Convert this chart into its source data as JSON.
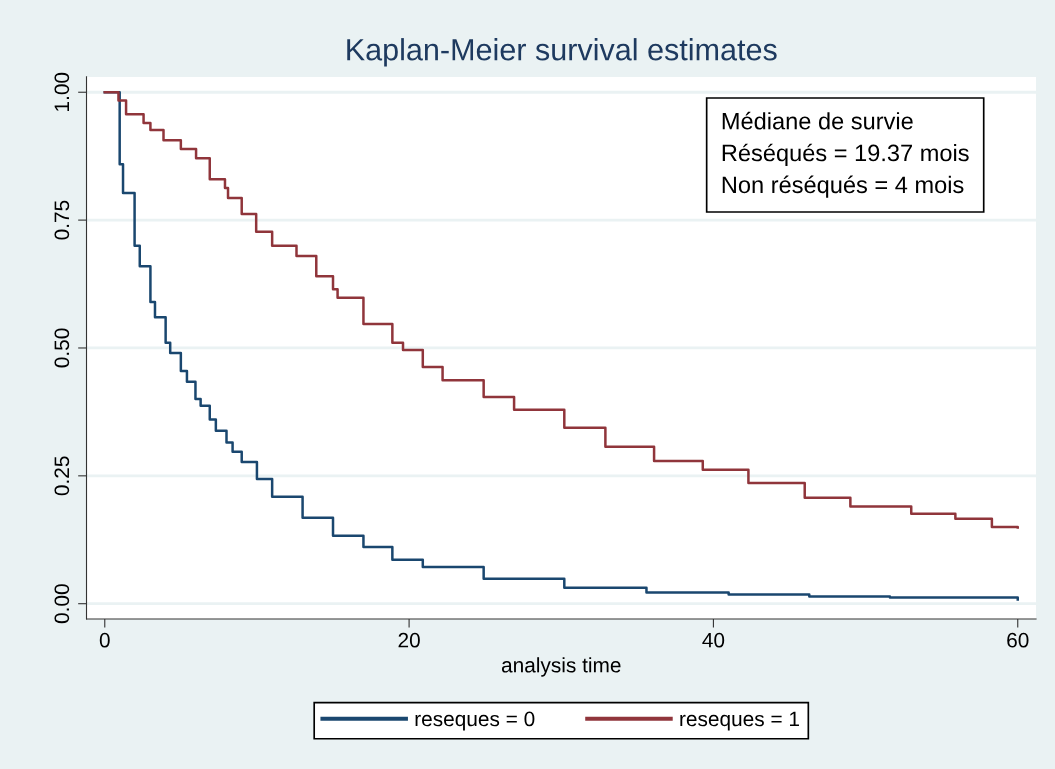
{
  "chart_data": {
    "type": "step",
    "title": "Kaplan-Meier survival estimates",
    "xlabel": "analysis time",
    "xlim": [
      -1.2,
      61.2
    ],
    "xticks": [
      0,
      20,
      40,
      60
    ],
    "ylim": [
      -0.03,
      1.03
    ],
    "yticks": [
      {
        "value": 0,
        "label": "0.00"
      },
      {
        "value": 0.25,
        "label": "0.25"
      },
      {
        "value": 0.5,
        "label": "0.50"
      },
      {
        "value": 0.75,
        "label": "0.75"
      },
      {
        "value": 1,
        "label": "1.00"
      }
    ],
    "grid": "y",
    "legend": "bottom",
    "line_style": "solid",
    "marker": "none",
    "annotations": [
      "Médiane de survie\nRéséqués = 19.37 mois\nNon réséqués = 4 mois"
    ],
    "series": [
      {
        "name": "reseques = 0",
        "color": "#1a476f",
        "x": [
          0,
          0.98,
          1.2,
          1.96,
          2.3,
          3.0,
          3.3,
          4.0,
          4.3,
          5.0,
          5.4,
          5.96,
          6.3,
          6.9,
          7.3,
          8.0,
          8.4,
          9.0,
          10.0,
          11.0,
          13.0,
          15.0,
          17.0,
          18.9,
          20.9,
          24.9,
          30.2,
          35.6,
          41.0,
          46.3,
          51.6,
          60.0
        ],
        "values": [
          1.0,
          0.859,
          0.803,
          0.7,
          0.66,
          0.59,
          0.56,
          0.51,
          0.49,
          0.455,
          0.434,
          0.4,
          0.387,
          0.36,
          0.338,
          0.315,
          0.297,
          0.277,
          0.244,
          0.209,
          0.168,
          0.133,
          0.111,
          0.086,
          0.072,
          0.049,
          0.031,
          0.022,
          0.018,
          0.014,
          0.012,
          0.008
        ]
      },
      {
        "name": "reseques = 1",
        "color": "#90353b",
        "x": [
          0,
          0.9,
          1.4,
          2.55,
          3.0,
          3.86,
          5.0,
          6.0,
          6.9,
          7.9,
          8.1,
          9.0,
          9.95,
          11.0,
          12.6,
          13.9,
          15.0,
          15.3,
          17.0,
          18.9,
          19.6,
          20.9,
          22.2,
          24.9,
          26.9,
          30.2,
          32.9,
          36.1,
          39.3,
          42.3,
          46.0,
          49.0,
          53.0,
          55.9,
          58.3,
          60.0
        ],
        "values": [
          1.0,
          0.984,
          0.957,
          0.94,
          0.926,
          0.906,
          0.889,
          0.871,
          0.83,
          0.813,
          0.793,
          0.762,
          0.727,
          0.7,
          0.68,
          0.64,
          0.615,
          0.598,
          0.547,
          0.51,
          0.496,
          0.463,
          0.437,
          0.404,
          0.379,
          0.344,
          0.307,
          0.279,
          0.262,
          0.236,
          0.207,
          0.19,
          0.176,
          0.166,
          0.15,
          0.149
        ]
      }
    ]
  }
}
